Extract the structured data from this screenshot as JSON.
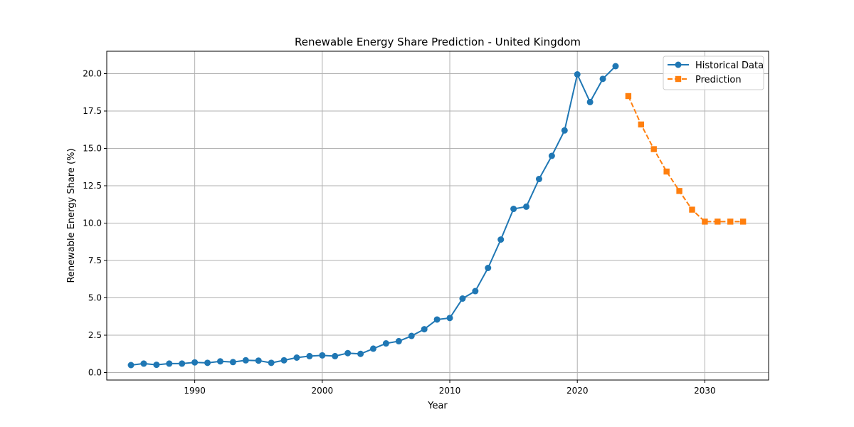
{
  "chart_data": {
    "type": "line",
    "title": "Renewable Energy Share Prediction - United Kingdom",
    "xlabel": "Year",
    "ylabel": "Renewable Energy Share (%)",
    "xlim": [
      1983.1,
      2035.0
    ],
    "ylim": [
      -0.5,
      21.5
    ],
    "xticks": [
      1990,
      2000,
      2010,
      2020,
      2030
    ],
    "yticks": [
      0.0,
      2.5,
      5.0,
      7.5,
      10.0,
      12.5,
      15.0,
      17.5,
      20.0
    ],
    "grid": true,
    "legend_position": "top-right",
    "series": [
      {
        "name": "Historical Data",
        "color": "#1f77b4",
        "line_style": "solid",
        "marker": "circle",
        "x": [
          1985,
          1986,
          1987,
          1988,
          1989,
          1990,
          1991,
          1992,
          1993,
          1994,
          1995,
          1996,
          1997,
          1998,
          1999,
          2000,
          2001,
          2002,
          2003,
          2004,
          2005,
          2006,
          2007,
          2008,
          2009,
          2010,
          2011,
          2012,
          2013,
          2014,
          2015,
          2016,
          2017,
          2018,
          2019,
          2020,
          2021,
          2022,
          2023
        ],
        "y": [
          0.5,
          0.6,
          0.52,
          0.6,
          0.6,
          0.68,
          0.65,
          0.75,
          0.7,
          0.82,
          0.8,
          0.65,
          0.82,
          1.0,
          1.1,
          1.15,
          1.1,
          1.3,
          1.25,
          1.6,
          1.95,
          2.1,
          2.45,
          2.9,
          3.55,
          3.65,
          4.95,
          5.45,
          7.0,
          8.9,
          10.95,
          11.1,
          12.95,
          14.5,
          16.2,
          19.95,
          18.1,
          19.65,
          20.5
        ]
      },
      {
        "name": "Prediction",
        "color": "#ff7f0e",
        "line_style": "dashed",
        "marker": "square",
        "x": [
          2024,
          2025,
          2026,
          2027,
          2028,
          2029,
          2030,
          2031,
          2032,
          2033
        ],
        "y": [
          18.5,
          16.6,
          14.95,
          13.45,
          12.15,
          10.9,
          10.1,
          10.1,
          10.1,
          10.1
        ]
      }
    ]
  }
}
